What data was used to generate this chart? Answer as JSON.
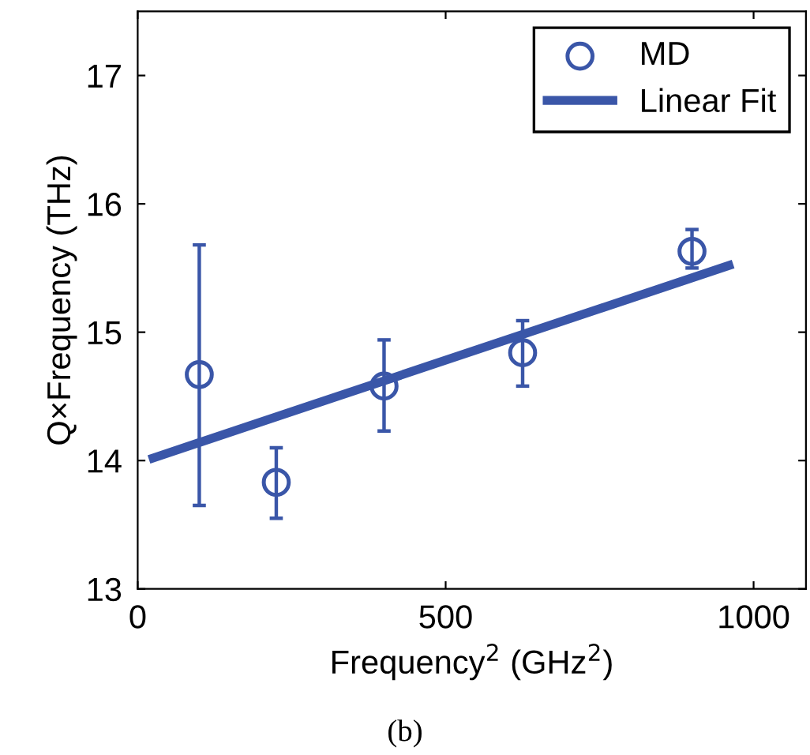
{
  "chart_data": {
    "type": "scatter",
    "xlabel": "Frequency$^{2}$ (GHz$^{2}$)",
    "ylabel": "Q×Frequency (THz)",
    "annotations": [
      "(b)"
    ],
    "series": [
      {
        "name": "MD",
        "color": "#3a56a8",
        "marker": "circle",
        "x": [
          100,
          225,
          400,
          625,
          900
        ],
        "values": [
          14.67,
          13.83,
          14.58,
          14.84,
          15.63
        ],
        "errors": [
          [
            13.65,
            15.68
          ],
          [
            13.55,
            14.1
          ],
          [
            14.23,
            14.94
          ],
          [
            14.58,
            15.09
          ],
          [
            15.5,
            15.8
          ]
        ]
      },
      {
        "name": "Linear Fit",
        "type": "line",
        "color": "#3a56a8",
        "marker": "none",
        "line_style": "solid",
        "x": [
          25,
          960
        ],
        "values": [
          14.02,
          15.52
        ]
      }
    ],
    "xlim": [
      0,
      1085
    ],
    "ylim": [
      13,
      17.5
    ],
    "xticks": [
      0,
      500,
      1000
    ],
    "yticks": [
      13,
      14,
      15,
      16,
      17
    ],
    "grid": false,
    "legend": "top right"
  }
}
